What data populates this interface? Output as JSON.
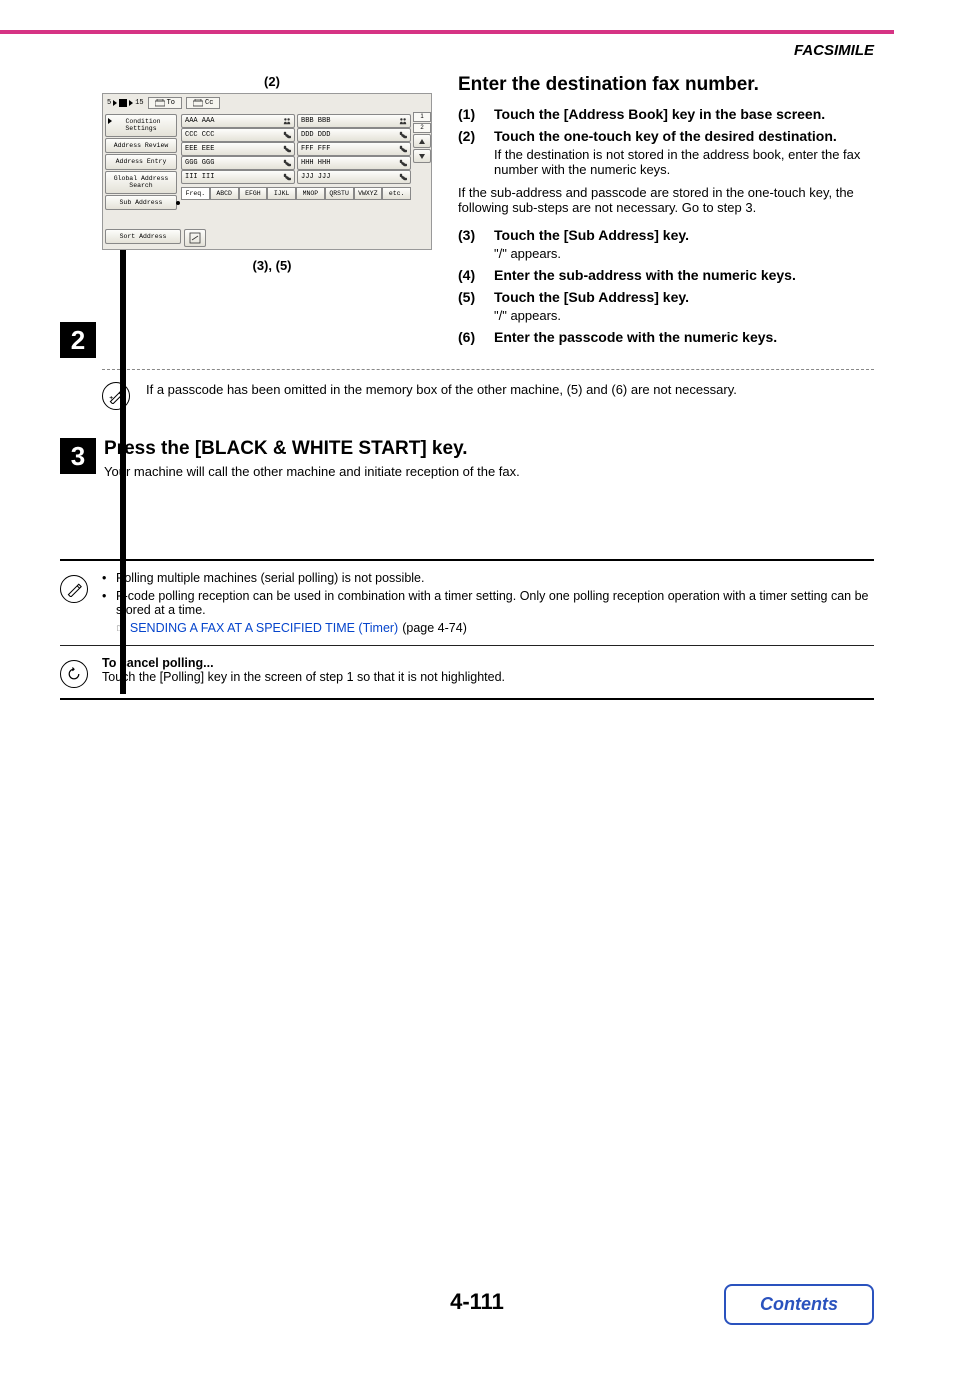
{
  "header": {
    "section": "FACSIMILE"
  },
  "step2": {
    "number": "2",
    "callout_top": "(2)",
    "callout_bottom": "(3), (5)",
    "heading": "Enter the destination fax number.",
    "items": [
      {
        "n": "(1)",
        "bold": "Touch the [Address Book] key in the base screen.",
        "sub": ""
      },
      {
        "n": "(2)",
        "bold": "Touch the one-touch key of the desired destination.",
        "sub": "If the destination is not stored in the address book, enter the fax number with the numeric keys."
      }
    ],
    "mid_para": "If the sub-address and passcode are stored in the one-touch key, the following sub-steps are not necessary. Go to step 3.",
    "items2": [
      {
        "n": "(3)",
        "bold": "Touch the [Sub Address] key.",
        "sub": "\"/\" appears."
      },
      {
        "n": "(4)",
        "bold": "Enter the sub-address with the numeric keys.",
        "sub": ""
      },
      {
        "n": "(5)",
        "bold": "Touch the [Sub Address] key.",
        "sub": "\"/\" appears."
      },
      {
        "n": "(6)",
        "bold": "Enter the passcode with the numeric keys.",
        "sub": ""
      }
    ],
    "note": "If a passcode has been omitted in the memory box of the other machine, (5) and (6) are not necessary."
  },
  "ui": {
    "topbar_count": "5",
    "topbar_total": "15",
    "tab_to": "To",
    "tab_cc": "Cc",
    "sidebar": [
      "Condition\nSettings",
      "Address Review",
      "Address Entry",
      "Global\nAddress Search",
      "Sub Address",
      "Sort Address"
    ],
    "entries": [
      [
        "AAA AAA",
        "BBB BBB"
      ],
      [
        "CCC CCC",
        "DDD DDD"
      ],
      [
        "EEE EEE",
        "FFF FFF"
      ],
      [
        "GGG GGG",
        "HHH HHH"
      ],
      [
        "III III",
        "JJJ JJJ"
      ]
    ],
    "icon_row_types": [
      "group",
      "phone",
      "phone",
      "phone",
      "phone"
    ],
    "pager": {
      "cur": "1",
      "total": "2"
    },
    "alpha": [
      "Freq.",
      "ABCD",
      "EFGH",
      "IJKL",
      "MNOP",
      "QRSTU",
      "VWXYZ",
      "etc."
    ]
  },
  "step3": {
    "number": "3",
    "heading": "Press the [BLACK & WHITE START] key.",
    "sub": "Your machine will call the other machine and initiate reception of the fax."
  },
  "info": {
    "bullet1": "Polling multiple machines (serial polling) is not possible.",
    "bullet2": "F-code polling reception can be used in combination with a timer setting. Only one polling reception operation with a timer setting can be stored at a time.",
    "link_icon": "☞",
    "link_text": "SENDING A FAX AT A SPECIFIED TIME (Timer)",
    "link_suffix": " (page 4-74)",
    "cancel_title": "To cancel polling...",
    "cancel_body": "Touch the [Polling] key in the screen of step 1 so that it is not highlighted."
  },
  "footer": {
    "page": "4-111",
    "contents": "Contents"
  }
}
